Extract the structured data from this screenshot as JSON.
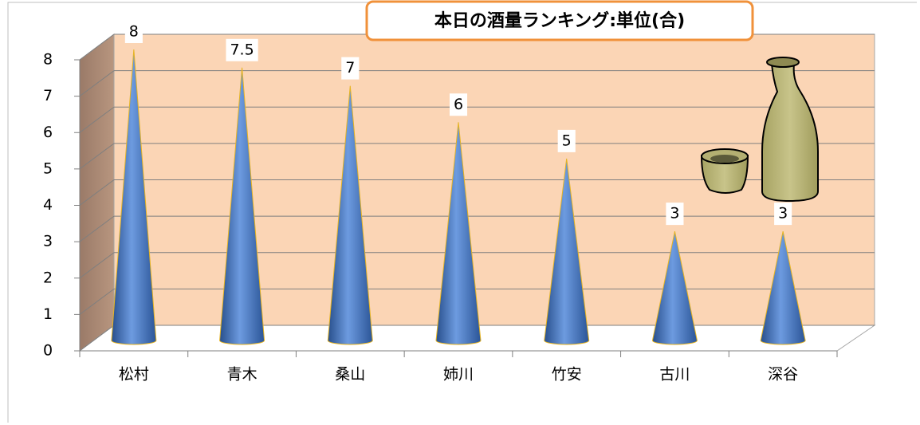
{
  "chart_data": {
    "type": "cone",
    "title": "本日の酒量ランキング:単位(合)",
    "categories": [
      "松村",
      "青木",
      "桑山",
      "姉川",
      "竹安",
      "古川",
      "深谷"
    ],
    "values": [
      8,
      7.5,
      7,
      6,
      5,
      3,
      3
    ],
    "color": "#3c6fb4",
    "ylim": [
      0,
      8
    ],
    "yticks": [
      0,
      1,
      2,
      3,
      4,
      5,
      6,
      7,
      8
    ],
    "grid": true
  }
}
